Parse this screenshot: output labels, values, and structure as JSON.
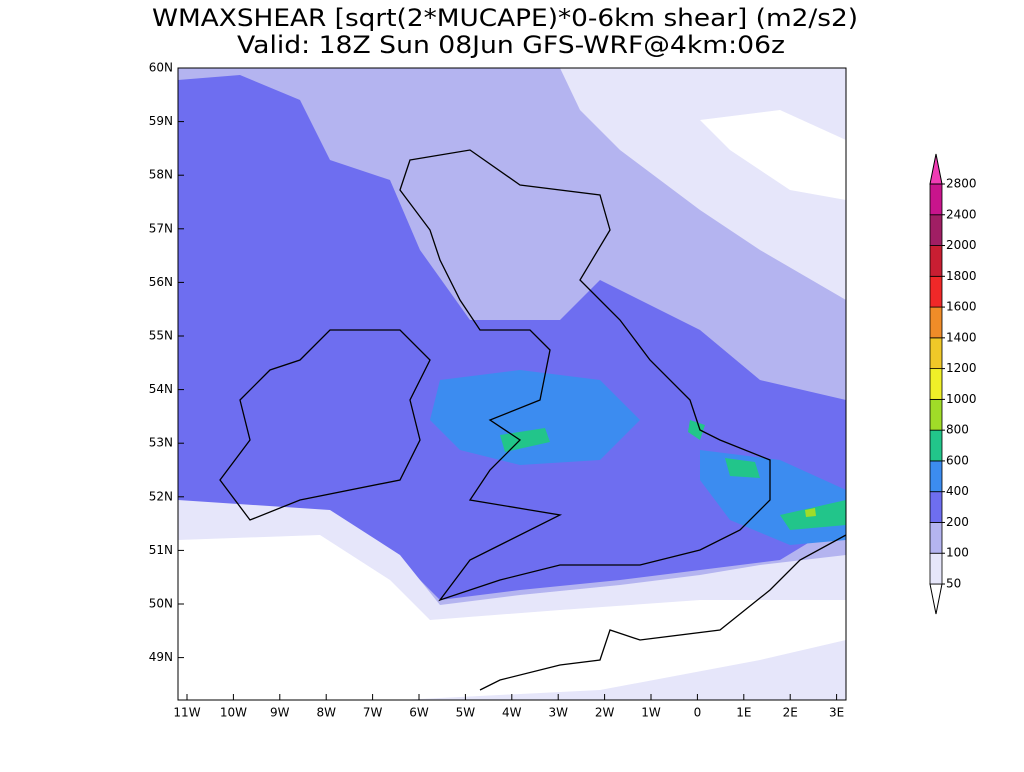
{
  "title": [
    "WMAXSHEAR [sqrt(2*MUCAPE)*0-6km shear] (m2/s2)",
    "Valid: 18Z Sun 08Jun GFS-WRF@4km:06z"
  ],
  "lat_labels": [
    "60N",
    "59N",
    "58N",
    "57N",
    "56N",
    "55N",
    "54N",
    "53N",
    "52N",
    "51N",
    "50N",
    "49N"
  ],
  "lon_labels": [
    "11W",
    "10W",
    "9W",
    "8W",
    "7W",
    "6W",
    "5W",
    "4W",
    "3W",
    "2W",
    "1W",
    "0",
    "1E",
    "2E",
    "3E"
  ],
  "colorbar": {
    "levels": [
      50,
      100,
      200,
      400,
      600,
      800,
      1000,
      1200,
      1400,
      1600,
      1800,
      2000,
      2400,
      2800
    ],
    "colors": [
      "#ffffff",
      "#e6e6fa",
      "#b4b4f0",
      "#6e6ef0",
      "#3c8cf0",
      "#22c58a",
      "#a0dc28",
      "#f0f028",
      "#f0c828",
      "#f08c28",
      "#f02828",
      "#c81e32",
      "#a01e64",
      "#c8148c",
      "#f03cb4"
    ]
  }
}
